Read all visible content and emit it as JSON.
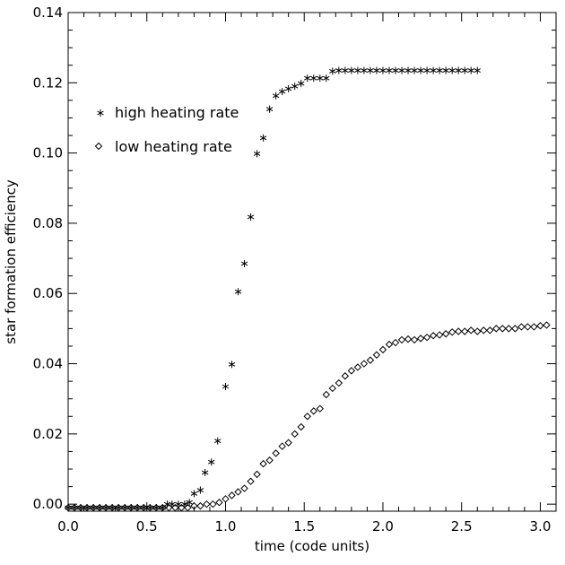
{
  "chart_data": {
    "type": "scatter",
    "title": "",
    "xlabel": "time (code units)",
    "ylabel": "star formation efficiency",
    "xlim": [
      0.0,
      3.1
    ],
    "ylim": [
      -0.002,
      0.14
    ],
    "x_ticks": [
      0.0,
      0.5,
      1.0,
      1.5,
      2.0,
      2.5,
      3.0
    ],
    "x_tick_labels": [
      "0.0",
      "0.5",
      "1.0",
      "1.5",
      "2.0",
      "2.5",
      "3.0"
    ],
    "y_ticks": [
      0.0,
      0.02,
      0.04,
      0.06,
      0.08,
      0.1,
      0.12,
      0.14
    ],
    "y_tick_labels": [
      "0.00",
      "0.02",
      "0.04",
      "0.06",
      "0.08",
      "0.10",
      "0.12",
      "0.14"
    ],
    "grid": false,
    "legend_position": "top-left",
    "colors": {
      "axis": "#000000",
      "marker": "#000000"
    },
    "series": [
      {
        "name": "high heating rate",
        "marker": "asterisk",
        "x": [
          0.0,
          0.04,
          0.08,
          0.12,
          0.16,
          0.2,
          0.24,
          0.28,
          0.32,
          0.36,
          0.4,
          0.44,
          0.48,
          0.52,
          0.56,
          0.6,
          0.63,
          0.66,
          0.7,
          0.74,
          0.77,
          0.8,
          0.84,
          0.87,
          0.91,
          0.95,
          1.0,
          1.04,
          1.08,
          1.12,
          1.16,
          1.2,
          1.24,
          1.28,
          1.32,
          1.36,
          1.4,
          1.44,
          1.48,
          1.52,
          1.56,
          1.6,
          1.64,
          1.68,
          1.72,
          1.76,
          1.8,
          1.84,
          1.88,
          1.92,
          1.96,
          2.0,
          2.04,
          2.08,
          2.12,
          2.16,
          2.2,
          2.24,
          2.28,
          2.32,
          2.36,
          2.4,
          2.44,
          2.48,
          2.52,
          2.56,
          2.6
        ],
        "y": [
          -0.001,
          -0.001,
          -0.001,
          -0.001,
          -0.001,
          -0.001,
          -0.001,
          -0.001,
          -0.001,
          -0.001,
          -0.001,
          -0.001,
          -0.001,
          -0.001,
          -0.001,
          -0.001,
          0.0,
          0.0,
          0.0,
          0.0,
          0.0005,
          0.003,
          0.004,
          0.009,
          0.012,
          0.018,
          0.0335,
          0.0398,
          0.0605,
          0.0685,
          0.0818,
          0.0998,
          0.1043,
          0.1125,
          0.1163,
          0.1175,
          0.1183,
          0.119,
          0.1198,
          0.1213,
          0.1213,
          0.1213,
          0.1213,
          0.1233,
          0.1235,
          0.1235,
          0.1235,
          0.1235,
          0.1235,
          0.1235,
          0.1235,
          0.1235,
          0.1235,
          0.1235,
          0.1235,
          0.1235,
          0.1235,
          0.1235,
          0.1235,
          0.1235,
          0.1235,
          0.1235,
          0.1235,
          0.1235,
          0.1235,
          0.1235,
          0.1235
        ]
      },
      {
        "name": "low heating rate",
        "marker": "diamond",
        "x": [
          0.0,
          0.04,
          0.08,
          0.12,
          0.16,
          0.2,
          0.24,
          0.28,
          0.32,
          0.36,
          0.4,
          0.44,
          0.48,
          0.52,
          0.56,
          0.6,
          0.64,
          0.68,
          0.72,
          0.76,
          0.8,
          0.84,
          0.88,
          0.92,
          0.96,
          1.0,
          1.04,
          1.08,
          1.12,
          1.16,
          1.2,
          1.24,
          1.28,
          1.32,
          1.36,
          1.4,
          1.44,
          1.48,
          1.52,
          1.56,
          1.6,
          1.64,
          1.68,
          1.72,
          1.76,
          1.8,
          1.84,
          1.88,
          1.92,
          1.96,
          2.0,
          2.04,
          2.08,
          2.12,
          2.16,
          2.2,
          2.24,
          2.28,
          2.32,
          2.36,
          2.4,
          2.44,
          2.48,
          2.52,
          2.56,
          2.6,
          2.64,
          2.68,
          2.72,
          2.76,
          2.8,
          2.84,
          2.88,
          2.92,
          2.96,
          3.0,
          3.04
        ],
        "y": [
          -0.001,
          -0.001,
          -0.001,
          -0.001,
          -0.001,
          -0.001,
          -0.001,
          -0.001,
          -0.001,
          -0.001,
          -0.001,
          -0.001,
          -0.001,
          -0.001,
          -0.001,
          -0.001,
          -0.001,
          -0.001,
          -0.001,
          -0.001,
          -0.0005,
          -0.0005,
          0.0,
          0.0,
          0.0005,
          0.0015,
          0.0025,
          0.0035,
          0.0045,
          0.0065,
          0.0085,
          0.0115,
          0.0125,
          0.0145,
          0.0165,
          0.0175,
          0.02,
          0.022,
          0.025,
          0.0265,
          0.0272,
          0.0312,
          0.033,
          0.0345,
          0.0365,
          0.038,
          0.039,
          0.04,
          0.041,
          0.0425,
          0.044,
          0.0455,
          0.046,
          0.0468,
          0.047,
          0.0468,
          0.0472,
          0.0475,
          0.048,
          0.0482,
          0.0485,
          0.049,
          0.0492,
          0.0492,
          0.0495,
          0.0492,
          0.0495,
          0.0495,
          0.05,
          0.05,
          0.05,
          0.05,
          0.0505,
          0.0505,
          0.0505,
          0.0508,
          0.051
        ]
      }
    ]
  }
}
